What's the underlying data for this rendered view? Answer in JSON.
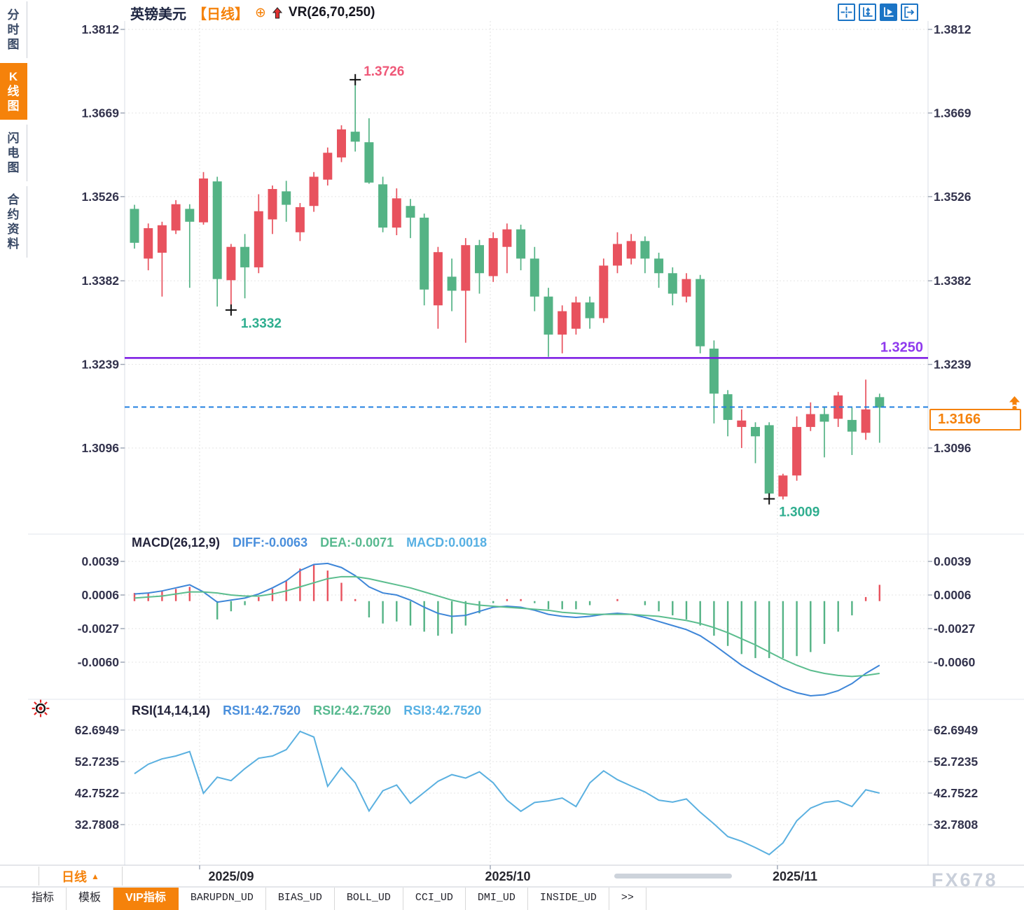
{
  "header": {
    "symbol": "英镑美元",
    "timeframe": "【日线】",
    "add_icon": "⊕",
    "indicator": "VR(26,70,250)"
  },
  "sidebar": {
    "items": [
      {
        "label": "分时图",
        "active": false
      },
      {
        "label": "K线图",
        "active": true
      },
      {
        "label": "闪电图",
        "active": false
      },
      {
        "label": "合约资料",
        "active": false
      }
    ]
  },
  "toolbar_icons": [
    {
      "name": "crosshair"
    },
    {
      "name": "axis-scale"
    },
    {
      "name": "axis-play",
      "active": true
    },
    {
      "name": "pan-right"
    }
  ],
  "price_panel": {
    "axis": [
      "1.3812",
      "1.3669",
      "1.3526",
      "1.3382",
      "1.3239",
      "1.3096"
    ]
  },
  "macd_panel": {
    "title": "MACD(26,12,9)",
    "diff_label": "DIFF:-0.0063",
    "dea_label": "DEA:-0.0071",
    "macd_label": "MACD:0.0018",
    "axis": [
      "0.0039",
      "0.0006",
      "-0.0027",
      "-0.0060"
    ]
  },
  "rsi_panel": {
    "title": "RSI(14,14,14)",
    "rsi1_label": "RSI1:42.7520",
    "rsi2_label": "RSI2:42.7520",
    "rsi3_label": "RSI3:42.7520",
    "axis": [
      "62.6949",
      "52.7235",
      "42.7522",
      "32.7808"
    ]
  },
  "price_box": {
    "label": "1.3166"
  },
  "timeline": {
    "timeframe_label": "日线",
    "arrow": "▲",
    "dates": [
      "2025/09",
      "2025/10",
      "2025/11"
    ]
  },
  "tabs": [
    {
      "label": "指标",
      "active": false
    },
    {
      "label": "模板",
      "active": false
    },
    {
      "label": "VIP指标",
      "active": true
    },
    {
      "label": "BARUPDN_UD",
      "active": false
    },
    {
      "label": "BIAS_UD",
      "active": false
    },
    {
      "label": "BOLL_UD",
      "active": false
    },
    {
      "label": "CCI_UD",
      "active": false
    },
    {
      "label": "DMI_UD",
      "active": false
    },
    {
      "label": "INSIDE_UD",
      "active": false
    },
    {
      "label": ">>",
      "active": false
    }
  ],
  "watermark": "FX678",
  "colors": {
    "up": "#e8525e",
    "down": "#54b385",
    "accent_orange": "#f5820b",
    "diff_blue": "#3e86d8",
    "dea_green": "#5bbd8e",
    "rsi_blue": "#5ab0e0",
    "support_purple": "#7a18e3",
    "purple_label": "#8f39ee",
    "dashed_blue": "#2280e0",
    "high_label": "#ef5878",
    "low_label": "#2fae8f"
  },
  "chart_data": {
    "type": "candlestick",
    "title": "英镑美元 日线 (GBP/USD daily) with VR(26,70,250), MACD(26,12,9), RSI(14,14,14)",
    "convention": "red = bullish close>=open, green = bearish (CN convention)",
    "y_axis_ticks": [
      1.3812,
      1.3669,
      1.3526,
      1.3382,
      1.3239,
      1.3096
    ],
    "x_dates": [
      "2025/09",
      "2025/10",
      "2025/11"
    ],
    "support_line": 1.325,
    "last_price": 1.3166,
    "swing_high": {
      "label": "1.3726",
      "value": 1.3726,
      "index": 16
    },
    "swing_lows": [
      {
        "label": "1.3332",
        "value": 1.3332,
        "index": 7
      },
      {
        "label": "1.3009",
        "value": 1.3009,
        "index": 46
      }
    ],
    "candles_ohlc": [
      [
        1.3505,
        1.3512,
        1.3437,
        1.3447
      ],
      [
        1.342,
        1.348,
        1.34,
        1.3472
      ],
      [
        1.343,
        1.3483,
        1.3355,
        1.3477
      ],
      [
        1.3468,
        1.352,
        1.3462,
        1.3513
      ],
      [
        1.3505,
        1.3513,
        1.337,
        1.3483
      ],
      [
        1.3482,
        1.3568,
        1.3478,
        1.3557
      ],
      [
        1.3552,
        1.356,
        1.3338,
        1.3385
      ],
      [
        1.3383,
        1.3445,
        1.3332,
        1.344
      ],
      [
        1.344,
        1.3462,
        1.3352,
        1.3405
      ],
      [
        1.3405,
        1.353,
        1.3395,
        1.3501
      ],
      [
        1.3487,
        1.3545,
        1.3462,
        1.3539
      ],
      [
        1.3535,
        1.3553,
        1.3483,
        1.3512
      ],
      [
        1.3465,
        1.3515,
        1.345,
        1.3508
      ],
      [
        1.351,
        1.3568,
        1.35,
        1.356
      ],
      [
        1.3555,
        1.361,
        1.3545,
        1.3601
      ],
      [
        1.3593,
        1.3648,
        1.3585,
        1.3641
      ],
      [
        1.3637,
        1.3726,
        1.3603,
        1.362
      ],
      [
        1.3619,
        1.366,
        1.3548,
        1.355
      ],
      [
        1.3547,
        1.356,
        1.3465,
        1.3473
      ],
      [
        1.3473,
        1.354,
        1.346,
        1.3523
      ],
      [
        1.351,
        1.3522,
        1.3455,
        1.349
      ],
      [
        1.349,
        1.3497,
        1.334,
        1.3367
      ],
      [
        1.334,
        1.344,
        1.33,
        1.3431
      ],
      [
        1.3389,
        1.342,
        1.333,
        1.3365
      ],
      [
        1.3365,
        1.3455,
        1.3276,
        1.3443
      ],
      [
        1.3443,
        1.3452,
        1.336,
        1.3395
      ],
      [
        1.339,
        1.3465,
        1.338,
        1.3455
      ],
      [
        1.344,
        1.348,
        1.3395,
        1.347
      ],
      [
        1.347,
        1.3478,
        1.34,
        1.342
      ],
      [
        1.342,
        1.344,
        1.333,
        1.3355
      ],
      [
        1.3355,
        1.337,
        1.3252,
        1.329
      ],
      [
        1.329,
        1.334,
        1.3258,
        1.333
      ],
      [
        1.33,
        1.3355,
        1.329,
        1.3345
      ],
      [
        1.3345,
        1.3355,
        1.33,
        1.3318
      ],
      [
        1.3318,
        1.342,
        1.331,
        1.3408
      ],
      [
        1.3408,
        1.3465,
        1.3395,
        1.3445
      ],
      [
        1.342,
        1.3462,
        1.341,
        1.345
      ],
      [
        1.345,
        1.3458,
        1.3395,
        1.342
      ],
      [
        1.342,
        1.343,
        1.337,
        1.3395
      ],
      [
        1.3395,
        1.3405,
        1.334,
        1.336
      ],
      [
        1.3355,
        1.3395,
        1.3345,
        1.3385
      ],
      [
        1.3385,
        1.3392,
        1.3258,
        1.327
      ],
      [
        1.3266,
        1.328,
        1.3138,
        1.3189
      ],
      [
        1.3188,
        1.3195,
        1.3116,
        1.3144
      ],
      [
        1.3132,
        1.3162,
        1.3096,
        1.3143
      ],
      [
        1.3132,
        1.314,
        1.307,
        1.3116
      ],
      [
        1.3135,
        1.314,
        1.3009,
        1.3018
      ],
      [
        1.3013,
        1.3052,
        1.3008,
        1.3049
      ],
      [
        1.3049,
        1.315,
        1.304,
        1.3132
      ],
      [
        1.3132,
        1.3174,
        1.3125,
        1.3154
      ],
      [
        1.3154,
        1.3165,
        1.308,
        1.3141
      ],
      [
        1.3146,
        1.3192,
        1.3132,
        1.3186
      ],
      [
        1.3144,
        1.3165,
        1.3084,
        1.3124
      ],
      [
        1.3122,
        1.3213,
        1.311,
        1.3162
      ],
      [
        1.3183,
        1.3189,
        1.3105,
        1.3165
      ]
    ],
    "macd": {
      "params": [
        26,
        12,
        9
      ],
      "diff": -0.0063,
      "dea": -0.0071,
      "macd": 0.0018,
      "axis_ticks": [
        0.0039,
        0.0006,
        -0.0027,
        -0.006
      ],
      "diff_series": [
        0.0007,
        0.0008,
        0.001,
        0.0013,
        0.0016,
        0.0009,
        -0.0001,
        0.0001,
        0.0003,
        0.0007,
        0.0013,
        0.002,
        0.003,
        0.0036,
        0.0037,
        0.0033,
        0.0025,
        0.0014,
        0.0008,
        0.0006,
        0.0001,
        -0.0006,
        -0.0012,
        -0.0015,
        -0.0014,
        -0.001,
        -0.0006,
        -0.0005,
        -0.0006,
        -0.0009,
        -0.0013,
        -0.0015,
        -0.0016,
        -0.0015,
        -0.0013,
        -0.0012,
        -0.0013,
        -0.0016,
        -0.002,
        -0.0024,
        -0.0028,
        -0.0034,
        -0.0043,
        -0.0053,
        -0.0063,
        -0.0071,
        -0.0078,
        -0.0085,
        -0.009,
        -0.0093,
        -0.0092,
        -0.0088,
        -0.0081,
        -0.0071,
        -0.0063
      ],
      "dea_series": [
        0.0003,
        0.0004,
        0.0005,
        0.0007,
        0.0009,
        0.0009,
        0.0008,
        0.0006,
        0.0005,
        0.0005,
        0.0007,
        0.001,
        0.0014,
        0.0018,
        0.0022,
        0.0024,
        0.0024,
        0.0022,
        0.0019,
        0.0016,
        0.0013,
        0.0009,
        0.0005,
        0.0001,
        -0.0002,
        -0.0004,
        -0.0005,
        -0.0006,
        -0.0007,
        -0.0008,
        -0.0009,
        -0.0011,
        -0.0012,
        -0.0013,
        -0.0013,
        -0.0013,
        -0.0013,
        -0.0014,
        -0.0015,
        -0.0017,
        -0.0019,
        -0.0022,
        -0.0026,
        -0.0031,
        -0.0037,
        -0.0043,
        -0.005,
        -0.0057,
        -0.0063,
        -0.0068,
        -0.0071,
        -0.0073,
        -0.0074,
        -0.0073,
        -0.0071
      ]
    },
    "rsi": {
      "params": [
        14,
        14,
        14
      ],
      "rsi1": 42.752,
      "rsi2": 42.752,
      "rsi3": 42.752,
      "axis_ticks": [
        62.6949,
        52.7235,
        42.7522,
        32.7808
      ],
      "series": [
        48.9,
        51.9,
        53.6,
        54.5,
        55.9,
        42.7,
        47.8,
        46.7,
        50.5,
        53.8,
        54.5,
        56.5,
        62.3,
        60.5,
        44.9,
        50.8,
        46.0,
        37.1,
        43.5,
        45.3,
        39.5,
        43.0,
        46.5,
        48.6,
        47.5,
        49.5,
        46.0,
        40.5,
        37.0,
        39.8,
        40.3,
        41.2,
        38.5,
        46.0,
        49.8,
        47.0,
        45.0,
        43.1,
        40.5,
        39.9,
        40.9,
        36.7,
        33.0,
        29.0,
        27.5,
        25.5,
        23.3,
        27.0,
        34.0,
        38.0,
        39.8,
        40.3,
        38.5,
        43.8,
        42.752
      ]
    }
  }
}
